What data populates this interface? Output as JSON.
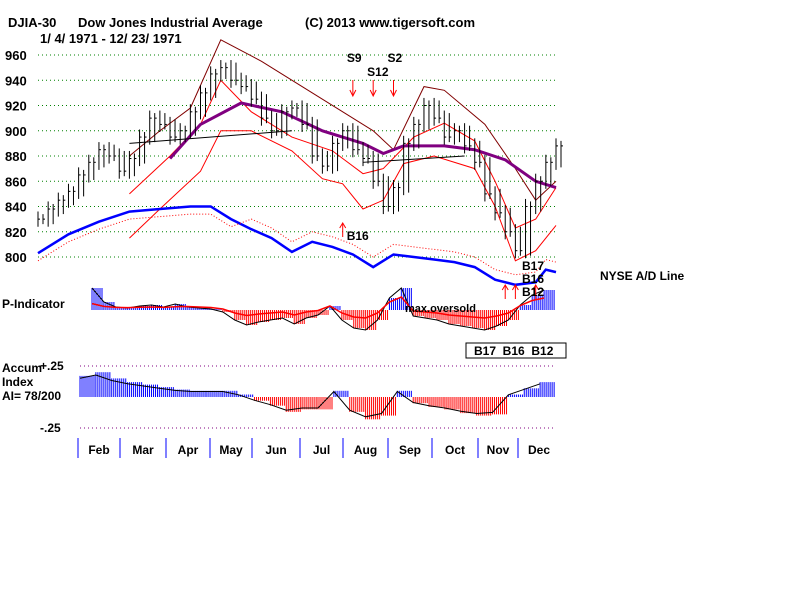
{
  "header": {
    "symbol": "DJIA-30",
    "name": "Dow Jones Industrial Average",
    "copyright": "(C) 2013 www.tigersoft.com",
    "date_range": "1/ 4/ 1971 - 12/ 23/ 1971"
  },
  "labels": {
    "ad_line": "NYSE A/D Line",
    "p_indicator": "P-Indicator",
    "accum_1": "Accum",
    "accum_2": "Index",
    "accum_3": "AI= 78/200",
    "accum_top": "+.25",
    "accum_bottom": "-.25",
    "max_oversold": "max.oversold",
    "signal_box": "B17  B16  B12"
  },
  "colors": {
    "price": "#000000",
    "ma": "#800080",
    "band_outer": "#800000",
    "band_inner": "#ff0000",
    "ad": "#0000ff",
    "positive": "#0000ff",
    "negative": "#ff0000",
    "grid": "#008000"
  },
  "chart_data": {
    "type": "line",
    "title": "DJIA-30 Dow Jones Industrial Average",
    "ylim": [
      790,
      975
    ],
    "yticks": [
      960,
      940,
      920,
      900,
      880,
      860,
      840,
      820,
      800
    ],
    "months": [
      "Feb",
      "Mar",
      "Apr",
      "May",
      "Jun",
      "Jul",
      "Aug",
      "Sep",
      "Oct",
      "Nov",
      "Dec"
    ],
    "weeks": 52,
    "price_close": [
      830,
      838,
      845,
      852,
      865,
      875,
      885,
      880,
      868,
      878,
      895,
      910,
      905,
      895,
      900,
      915,
      930,
      945,
      950,
      940,
      935,
      925,
      910,
      900,
      915,
      918,
      905,
      880,
      872,
      890,
      900,
      885,
      878,
      860,
      840,
      855,
      890,
      905,
      920,
      910,
      895,
      900,
      888,
      875,
      850,
      835,
      820,
      805,
      840,
      860,
      875,
      888
    ],
    "ma": [
      [
        13,
        878
      ],
      [
        16,
        905
      ],
      [
        20,
        922
      ],
      [
        24,
        915
      ],
      [
        28,
        900
      ],
      [
        32,
        890
      ],
      [
        34,
        882
      ],
      [
        36,
        888
      ],
      [
        40,
        888
      ],
      [
        43,
        885
      ],
      [
        46,
        877
      ],
      [
        49,
        860
      ],
      [
        51,
        855
      ]
    ],
    "upper_band": [
      [
        9,
        880
      ],
      [
        12,
        900
      ],
      [
        15,
        918
      ],
      [
        18,
        972
      ],
      [
        22,
        955
      ],
      [
        26,
        935
      ],
      [
        30,
        915
      ],
      [
        33,
        900
      ],
      [
        35,
        885
      ],
      [
        38,
        935
      ],
      [
        40,
        932
      ],
      [
        44,
        905
      ],
      [
        47,
        870
      ],
      [
        49,
        845
      ],
      [
        51,
        860
      ]
    ],
    "mid_upper": [
      [
        9,
        850
      ],
      [
        13,
        880
      ],
      [
        16,
        905
      ],
      [
        18,
        940
      ],
      [
        21,
        915
      ],
      [
        25,
        895
      ],
      [
        29,
        884
      ],
      [
        32,
        866
      ],
      [
        34,
        870
      ],
      [
        37,
        895
      ],
      [
        40,
        906
      ],
      [
        43,
        892
      ],
      [
        45,
        860
      ],
      [
        47,
        823
      ],
      [
        49,
        830
      ],
      [
        51,
        855
      ]
    ],
    "mid_lower": [
      [
        9,
        815
      ],
      [
        12,
        838
      ],
      [
        16,
        868
      ],
      [
        18,
        900
      ],
      [
        21,
        900
      ],
      [
        25,
        884
      ],
      [
        28,
        862
      ],
      [
        30,
        858
      ],
      [
        32,
        838
      ],
      [
        34,
        845
      ],
      [
        36,
        874
      ],
      [
        39,
        880
      ],
      [
        43,
        870
      ],
      [
        45,
        840
      ],
      [
        47,
        797
      ],
      [
        49,
        805
      ],
      [
        51,
        825
      ]
    ],
    "ad_line": [
      [
        0,
        803
      ],
      [
        3,
        818
      ],
      [
        6,
        828
      ],
      [
        9,
        836
      ],
      [
        12,
        838
      ],
      [
        15,
        840
      ],
      [
        17,
        840
      ],
      [
        19,
        830
      ],
      [
        21,
        822
      ],
      [
        23,
        815
      ],
      [
        25,
        804
      ],
      [
        27,
        812
      ],
      [
        29,
        808
      ],
      [
        31,
        802
      ],
      [
        33,
        792
      ],
      [
        35,
        802
      ],
      [
        37,
        800
      ],
      [
        39,
        798
      ],
      [
        41,
        796
      ],
      [
        43,
        792
      ],
      [
        45,
        782
      ],
      [
        47,
        778
      ],
      [
        49,
        780
      ],
      [
        50,
        790
      ],
      [
        51,
        788
      ]
    ],
    "p_indicator": [
      22,
      8,
      3,
      2,
      4,
      5,
      3,
      6,
      3,
      2,
      1,
      -2,
      -10,
      -15,
      -12,
      -10,
      -8,
      -14,
      -8,
      -5,
      4,
      -10,
      -18,
      -20,
      -10,
      12,
      22,
      -6,
      -8,
      -10,
      -14,
      -16,
      -18,
      -20,
      -16,
      -10,
      5,
      15,
      20
    ],
    "accum_index": [
      0.17,
      0.2,
      0.15,
      0.12,
      0.1,
      0.08,
      0.06,
      0.05,
      0.05,
      0.05,
      0.02,
      -0.03,
      -0.07,
      -0.12,
      -0.1,
      -0.1,
      0.05,
      -0.12,
      -0.18,
      -0.15,
      0.05,
      -0.05,
      -0.08,
      -0.1,
      -0.13,
      -0.15,
      -0.14,
      0.02,
      0.07,
      0.12
    ],
    "signals": [
      {
        "label": "S9",
        "week": 31,
        "type": "sell"
      },
      {
        "label": "S12",
        "week": 33,
        "type": "sell"
      },
      {
        "label": "S2",
        "week": 35,
        "type": "sell"
      },
      {
        "label": "B16",
        "week": 30,
        "type": "buy"
      },
      {
        "label": "B17",
        "week": 46,
        "type": "buy"
      },
      {
        "label": "B16",
        "week": 47,
        "type": "buy"
      },
      {
        "label": "B12",
        "week": 49,
        "type": "buy"
      }
    ]
  }
}
